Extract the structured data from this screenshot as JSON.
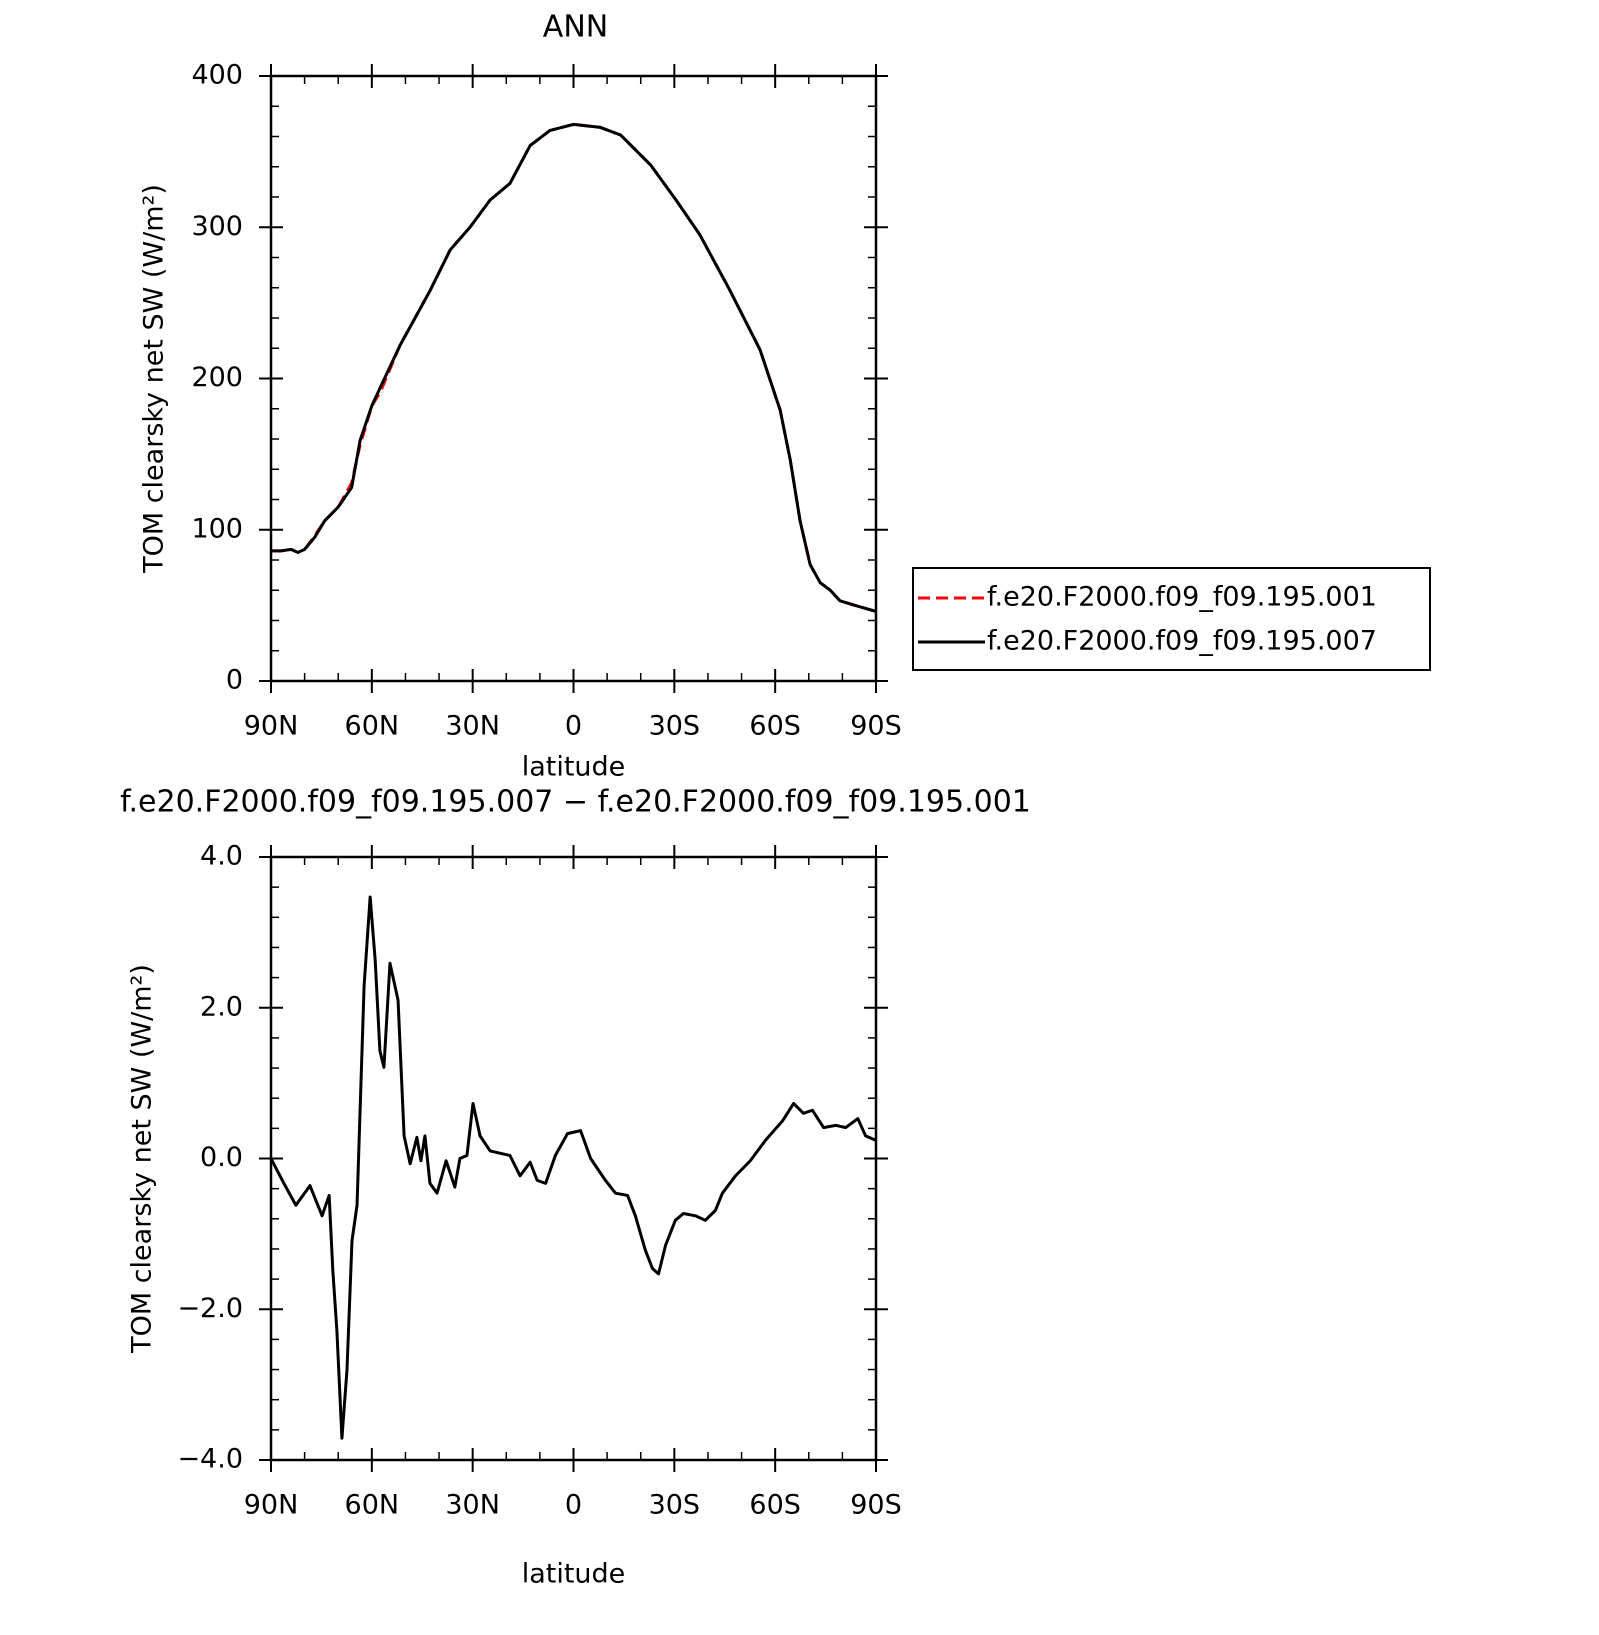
{
  "chart_data": [
    {
      "type": "line",
      "title": "ANN",
      "xlabel": "latitude",
      "ylabel": "TOM clearsky net SW (W/m²)",
      "xlim": [
        90,
        -90
      ],
      "xticks": [
        {
          "value": 90,
          "label": "90N"
        },
        {
          "value": 60,
          "label": "60N"
        },
        {
          "value": 30,
          "label": "30N"
        },
        0,
        {
          "value": -30,
          "label": "30S"
        },
        {
          "value": -60,
          "label": "60S"
        },
        {
          "value": -90,
          "label": "90S"
        }
      ],
      "ylim": [
        0,
        400
      ],
      "yticks": [
        0,
        100,
        200,
        300,
        400
      ],
      "legend": "right",
      "x": [
        90,
        87,
        84,
        82,
        80,
        77,
        74,
        70,
        66,
        63.5,
        60,
        57.5,
        51.6,
        42.7,
        36.7,
        30.8,
        24.8,
        18.9,
        12.9,
        7,
        0,
        -8,
        -14,
        -23,
        -30.5,
        -37.6,
        -46.6,
        -55.5,
        -61.5,
        -64.5,
        -67.4,
        -70.4,
        -73.4,
        -76.4,
        -79.3,
        -83.8,
        -90
      ],
      "series": [
        {
          "name": "f.e20.F2000.f09_f09.195.001",
          "color": "#ff0000",
          "dash": "dashed",
          "values": [
            86,
            86,
            87,
            85,
            87,
            96,
            106,
            115,
            131,
            156,
            182,
            191,
            222,
            258,
            285,
            300,
            318,
            329,
            354,
            364,
            368,
            366,
            361,
            341,
            318,
            295,
            258,
            219,
            179,
            146,
            106,
            77,
            65,
            60,
            53,
            50,
            46
          ]
        },
        {
          "name": "f.e20.F2000.f09_f09.195.007",
          "color": "#000000",
          "values": [
            86,
            86,
            87,
            85,
            87,
            95,
            106,
            115,
            128,
            159,
            182,
            194,
            222,
            258,
            285,
            300,
            318,
            329,
            354,
            364,
            368,
            366,
            361,
            341,
            318,
            295,
            258,
            219,
            179,
            146,
            106,
            77,
            65,
            60,
            53,
            50,
            46
          ]
        }
      ]
    },
    {
      "type": "line",
      "title": "f.e20.F2000.f09_f09.195.007 − f.e20.F2000.f09_f09.195.001",
      "xlabel": "latitude",
      "ylabel": "TOM clearsky net SW (W/m²)",
      "xlim": [
        90,
        -90
      ],
      "xticks": [
        {
          "value": 90,
          "label": "90N"
        },
        {
          "value": 60,
          "label": "60N"
        },
        {
          "value": 30,
          "label": "30N"
        },
        0,
        {
          "value": -30,
          "label": "30S"
        },
        {
          "value": -60,
          "label": "60S"
        },
        {
          "value": -90,
          "label": "90S"
        }
      ],
      "ylim": [
        -4,
        4
      ],
      "yticks": [
        {
          "value": -4,
          "label": "−4.0"
        },
        {
          "value": -2,
          "label": "−2.0"
        },
        {
          "value": 0,
          "label": "0.0"
        },
        {
          "value": 2,
          "label": "2.0"
        },
        {
          "value": 4,
          "label": "4.0"
        }
      ],
      "x": [
        90,
        88.5,
        85.8,
        82.6,
        78.4,
        74.8,
        72.7,
        71.6,
        70.4,
        68.9,
        67.4,
        65.9,
        64.4,
        62.3,
        60.5,
        59,
        57.6,
        56.4,
        54.6,
        52.2,
        50.4,
        48.6,
        46.6,
        45.4,
        44.2,
        42.7,
        40.6,
        37.9,
        35.3,
        33.8,
        31.7,
        29.9,
        27.8,
        24.8,
        21.9,
        18.9,
        15.9,
        12.9,
        10.8,
        8.3,
        5.4,
        1.8,
        -2.1,
        -5.1,
        -9.5,
        -12.5,
        -16.1,
        -18.4,
        -21.4,
        -23.5,
        -25.3,
        -27.4,
        -30.3,
        -32.7,
        -36.3,
        -39.2,
        -42.2,
        -44.3,
        -48.2,
        -52.6,
        -57.1,
        -62.2,
        -65.5,
        -68.4,
        -71.1,
        -74.4,
        -78,
        -81,
        -84.6,
        -86.9,
        -90
      ],
      "series": [
        {
          "color": "#000000",
          "values": [
            0,
            -0.13,
            -0.36,
            -0.62,
            -0.36,
            -0.76,
            -0.49,
            -1.49,
            -2.28,
            -3.71,
            -2.81,
            -1.09,
            -0.62,
            2.29,
            3.47,
            2.63,
            1.43,
            1.21,
            2.59,
            2.1,
            0.3,
            -0.07,
            0.28,
            -0.03,
            0.3,
            -0.33,
            -0.46,
            -0.03,
            -0.38,
            0,
            0.04,
            0.73,
            0.3,
            0.1,
            0.07,
            0.04,
            -0.23,
            -0.05,
            -0.29,
            -0.33,
            0.04,
            0.33,
            0.37,
            0,
            -0.29,
            -0.46,
            -0.49,
            -0.76,
            -1.22,
            -1.46,
            -1.53,
            -1.15,
            -0.82,
            -0.73,
            -0.76,
            -0.82,
            -0.69,
            -0.46,
            -0.23,
            -0.03,
            0.24,
            0.5,
            0.73,
            0.6,
            0.64,
            0.41,
            0.44,
            0.41,
            0.53,
            0.3,
            0.24
          ]
        }
      ]
    }
  ]
}
